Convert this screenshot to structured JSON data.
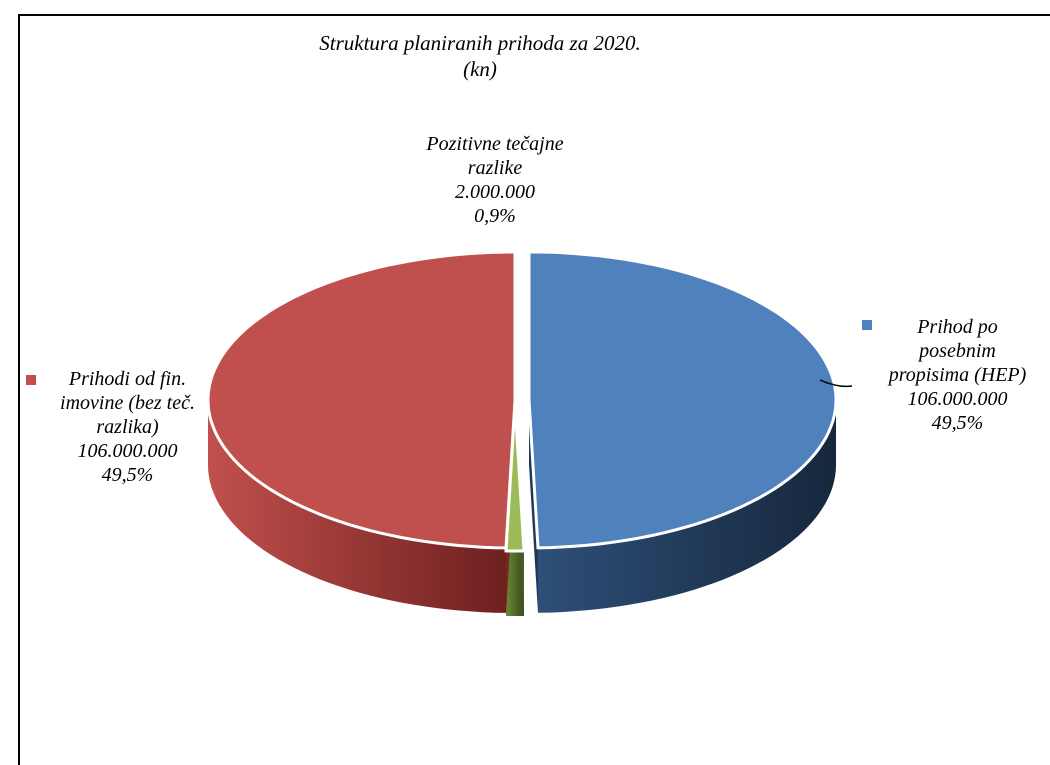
{
  "chart_data": {
    "type": "pie",
    "title_lines": [
      "Struktura planiranih prihoda za 2020.",
      "(kn)"
    ],
    "slices": [
      {
        "name_lines": [
          "Prihod po",
          "posebnim",
          "propisima (HEP)"
        ],
        "value": 106000000,
        "value_label": "106.000.000",
        "percent": 49.5,
        "percent_label": "49,5%",
        "color": "#4F81BD",
        "side_color": "#1F3858"
      },
      {
        "name_lines": [
          "Pozitivne tečajne",
          "razlike"
        ],
        "value": 2000000,
        "value_label": "2.000.000",
        "percent": 0.9,
        "percent_label": "0,9%",
        "color": "#9BBB59",
        "side_color": "#4A5B2A"
      },
      {
        "name_lines": [
          "Prihodi od fin.",
          "imovine (bez teč.",
          "razlika)"
        ],
        "value": 106000000,
        "value_label": "106.000.000",
        "percent": 49.5,
        "percent_label": "49,5%",
        "color": "#C0504D",
        "side_color": "#7A2624"
      }
    ],
    "legend_position": "labels"
  }
}
